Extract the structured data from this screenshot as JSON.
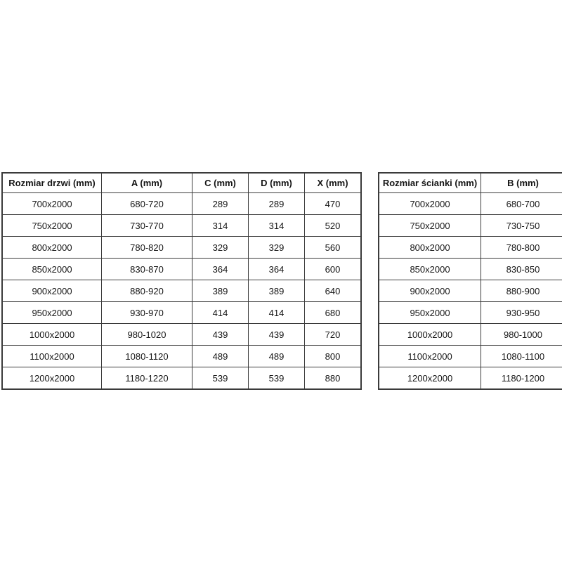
{
  "colors": {
    "background": "#ffffff",
    "border": "#3b3b3b",
    "text": "#151515"
  },
  "door_table": {
    "title_semantic": "door-size-table",
    "headers": [
      "Rozmiar drzwi (mm)",
      "A (mm)",
      "C (mm)",
      "D (mm)",
      "X (mm)"
    ],
    "rows": [
      [
        "700x2000",
        "680-720",
        "289",
        "289",
        "470"
      ],
      [
        "750x2000",
        "730-770",
        "314",
        "314",
        "520"
      ],
      [
        "800x2000",
        "780-820",
        "329",
        "329",
        "560"
      ],
      [
        "850x2000",
        "830-870",
        "364",
        "364",
        "600"
      ],
      [
        "900x2000",
        "880-920",
        "389",
        "389",
        "640"
      ],
      [
        "950x2000",
        "930-970",
        "414",
        "414",
        "680"
      ],
      [
        "1000x2000",
        "980-1020",
        "439",
        "439",
        "720"
      ],
      [
        "1100x2000",
        "1080-1120",
        "489",
        "489",
        "800"
      ],
      [
        "1200x2000",
        "1180-1220",
        "539",
        "539",
        "880"
      ]
    ]
  },
  "wall_table": {
    "title_semantic": "wall-size-table",
    "headers": [
      "Rozmiar ścianki (mm)",
      "B (mm)"
    ],
    "rows": [
      [
        "700x2000",
        "680-700"
      ],
      [
        "750x2000",
        "730-750"
      ],
      [
        "800x2000",
        "780-800"
      ],
      [
        "850x2000",
        "830-850"
      ],
      [
        "900x2000",
        "880-900"
      ],
      [
        "950x2000",
        "930-950"
      ],
      [
        "1000x2000",
        "980-1000"
      ],
      [
        "1100x2000",
        "1080-1100"
      ],
      [
        "1200x2000",
        "1180-1200"
      ]
    ]
  }
}
